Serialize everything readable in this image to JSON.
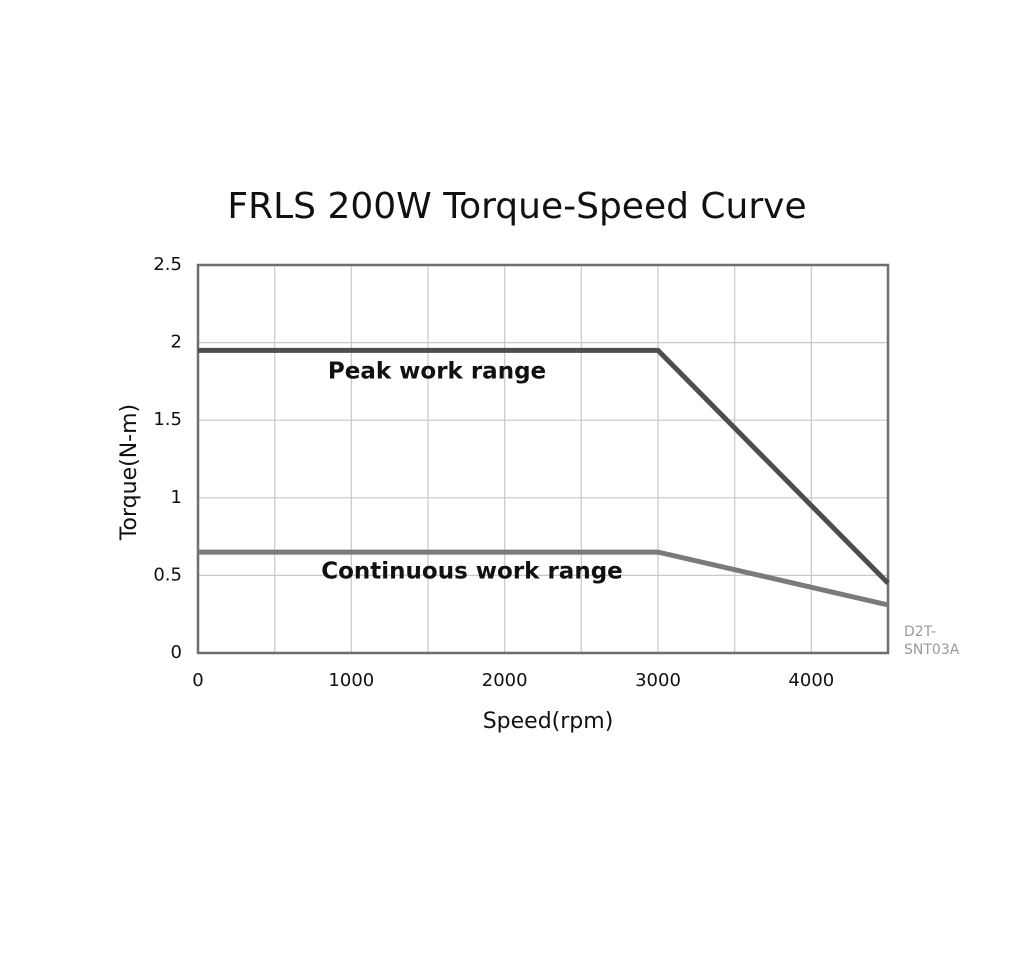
{
  "chart_data": {
    "type": "line",
    "title": "FRLS 200W Torque-Speed Curve",
    "x_label": "Speed(rpm)",
    "y_label": "Torque(N-m)",
    "xlim": [
      0,
      4500
    ],
    "xticks": [
      0,
      1000,
      2000,
      3000,
      4000
    ],
    "x_minor_grid": [
      500,
      1500,
      2500,
      3500
    ],
    "ylim": [
      0,
      2.5
    ],
    "yticks": [
      0,
      0.5,
      1,
      1.5,
      2,
      2.5
    ],
    "grid": true,
    "series": [
      {
        "name": "Peak work range",
        "color": "#4d4d4d",
        "x": [
          0,
          3000,
          4500
        ],
        "values": [
          1.95,
          1.95,
          0.45
        ]
      },
      {
        "name": "Continuous work range",
        "color": "#7a7a7a",
        "x": [
          0,
          3000,
          4500
        ],
        "values": [
          0.65,
          0.65,
          0.31
        ]
      }
    ],
    "code": [
      "D2T-",
      "SNT03A"
    ]
  }
}
